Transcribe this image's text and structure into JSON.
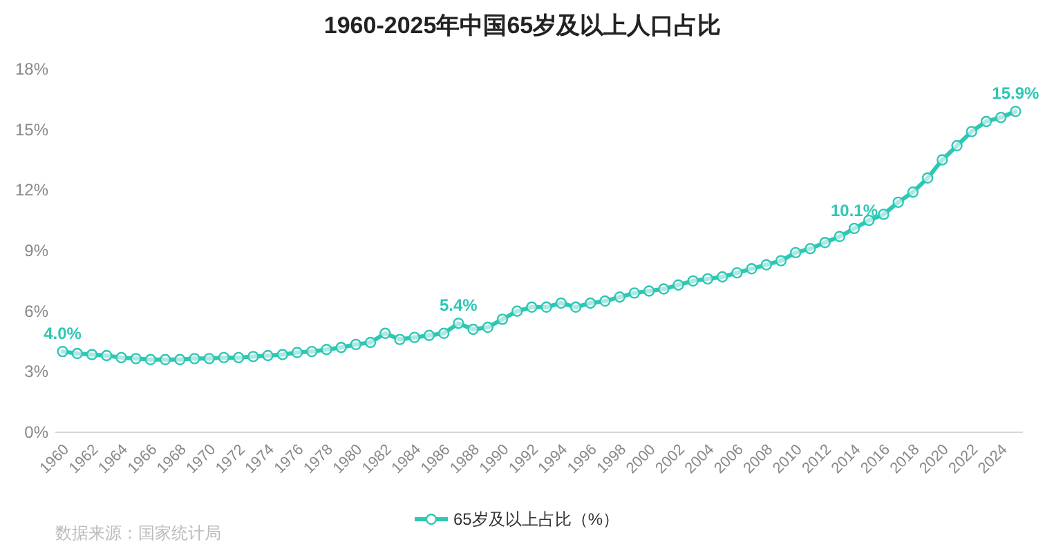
{
  "chart_data": {
    "type": "line",
    "title": "1960-2025年中国65岁及以上人口占比",
    "categories": [
      "1960",
      null,
      "1962",
      null,
      "1964",
      null,
      "1966",
      null,
      "1968",
      null,
      "1970",
      null,
      "1972",
      null,
      "1974",
      null,
      "1976",
      null,
      "1978",
      null,
      "1980",
      null,
      "1982",
      null,
      "1984",
      null,
      "1986",
      null,
      "1988",
      null,
      "1990",
      null,
      "1992",
      null,
      "1994",
      null,
      "1996",
      null,
      "1998",
      null,
      "2000",
      null,
      "2002",
      null,
      "2004",
      null,
      "2006",
      null,
      "2008",
      null,
      "2010",
      null,
      "2012",
      null,
      "2014",
      null,
      "2016",
      null,
      "2018",
      null,
      "2020",
      null,
      "2022",
      null,
      "2024",
      null
    ],
    "series": [
      {
        "name": "65岁及以上占比（%）",
        "color": "#2ec7b4",
        "values": [
          4.0,
          3.9,
          3.85,
          3.8,
          3.7,
          3.65,
          3.6,
          3.6,
          3.6,
          3.65,
          3.65,
          3.7,
          3.7,
          3.75,
          3.8,
          3.85,
          3.95,
          4.0,
          4.1,
          4.2,
          4.35,
          4.45,
          4.9,
          4.6,
          4.7,
          4.8,
          4.9,
          5.4,
          5.1,
          5.2,
          5.6,
          6.0,
          6.2,
          6.2,
          6.4,
          6.2,
          6.4,
          6.5,
          6.7,
          6.9,
          7.0,
          7.1,
          7.3,
          7.5,
          7.6,
          7.7,
          7.9,
          8.1,
          8.3,
          8.5,
          8.9,
          9.1,
          9.4,
          9.7,
          10.1,
          10.5,
          10.8,
          11.4,
          11.9,
          12.6,
          13.5,
          14.2,
          14.9,
          15.4,
          15.6,
          15.9
        ],
        "value_labels": [
          "4.0%",
          null,
          null,
          null,
          null,
          null,
          null,
          null,
          null,
          null,
          null,
          null,
          null,
          null,
          null,
          null,
          null,
          null,
          null,
          null,
          null,
          null,
          null,
          null,
          null,
          null,
          null,
          "5.4%",
          null,
          null,
          null,
          null,
          null,
          null,
          null,
          null,
          null,
          null,
          null,
          null,
          null,
          null,
          null,
          null,
          null,
          null,
          null,
          null,
          null,
          null,
          null,
          null,
          null,
          null,
          "10.1%",
          null,
          null,
          null,
          null,
          null,
          null,
          null,
          null,
          null,
          null,
          "15.9%"
        ]
      }
    ],
    "ylim": [
      0,
      18
    ],
    "yticks": [
      {
        "value": 0,
        "label": "0%"
      },
      {
        "value": 3,
        "label": "3%"
      },
      {
        "value": 6,
        "label": "6%"
      },
      {
        "value": 9,
        "label": "9%"
      },
      {
        "value": 12,
        "label": "12%"
      },
      {
        "value": 15,
        "label": "15%"
      },
      {
        "value": 18,
        "label": "18%"
      }
    ],
    "marker": "circle",
    "line_style": "solid",
    "legend": "bottom",
    "grid": false,
    "annotations": [
      "数据来源：国家统计局"
    ]
  }
}
